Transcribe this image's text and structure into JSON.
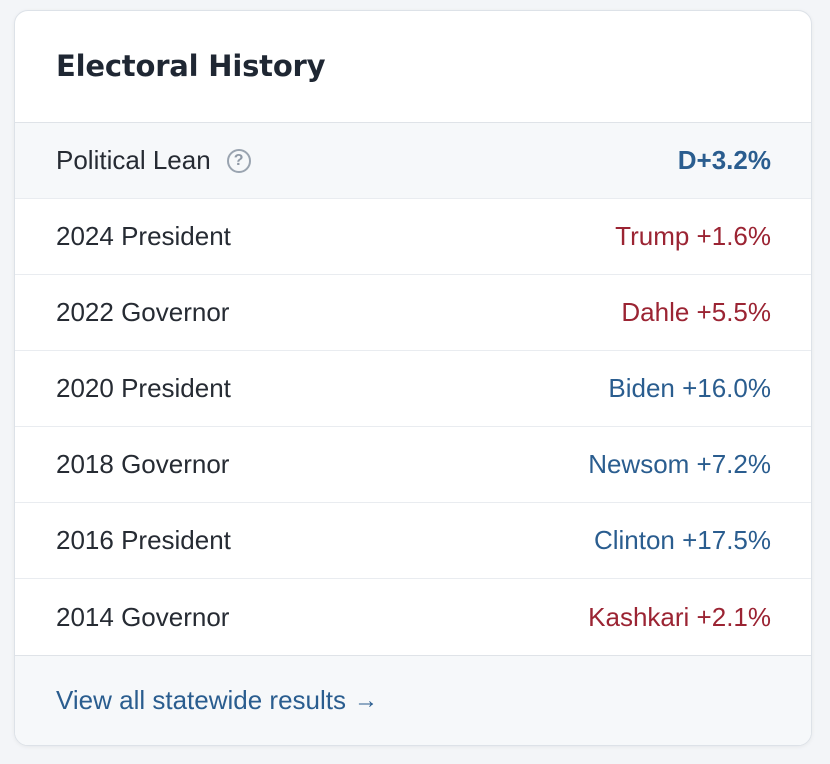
{
  "card": {
    "title": "Electoral History"
  },
  "lean": {
    "label": "Political Lean",
    "value": "D+3.2%",
    "color": "#2a5d8f"
  },
  "rows": [
    {
      "label": "2024 President",
      "value": "Trump +1.6%",
      "party": "R",
      "color": "#9b2433"
    },
    {
      "label": "2022 Governor",
      "value": "Dahle +5.5%",
      "party": "R",
      "color": "#9b2433"
    },
    {
      "label": "2020 President",
      "value": "Biden +16.0%",
      "party": "D",
      "color": "#2a5d8f"
    },
    {
      "label": "2018 Governor",
      "value": "Newsom +7.2%",
      "party": "D",
      "color": "#2a5d8f"
    },
    {
      "label": "2016 President",
      "value": "Clinton +17.5%",
      "party": "D",
      "color": "#2a5d8f"
    },
    {
      "label": "2014 Governor",
      "value": "Kashkari +2.1%",
      "party": "R",
      "color": "#9b2433"
    }
  ],
  "footer": {
    "link_label": "View all statewide results",
    "arrow": "→"
  },
  "icons": {
    "help": "?"
  }
}
